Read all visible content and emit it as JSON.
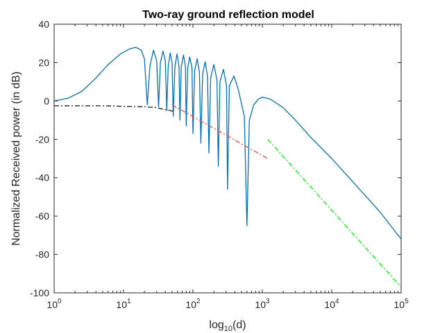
{
  "chart_data": {
    "type": "line",
    "title": "Two-ray ground reflection model",
    "xlabel": {
      "pre": "log",
      "sub": "10",
      "post": "(d)"
    },
    "ylabel": "Normalized Received power (in dB)",
    "x_scale": "log",
    "xlim": [
      1,
      100000
    ],
    "ylim": [
      -100,
      40
    ],
    "grid": false,
    "x_ticks": [
      {
        "value": 1,
        "base": "10",
        "exp": "0"
      },
      {
        "value": 10,
        "base": "10",
        "exp": "1"
      },
      {
        "value": 100,
        "base": "10",
        "exp": "2"
      },
      {
        "value": 1000,
        "base": "10",
        "exp": "3"
      },
      {
        "value": 10000,
        "base": "10",
        "exp": "4"
      },
      {
        "value": 100000,
        "base": "10",
        "exp": "5"
      }
    ],
    "y_ticks": [
      40,
      20,
      0,
      -20,
      -40,
      -60,
      -80,
      -100
    ],
    "colors": {
      "two_ray": "#0072bd",
      "free_space": "#262626",
      "slope_20db": "#ff4d4d",
      "slope_40db": "#00ff00"
    },
    "series": [
      {
        "style": "solid",
        "color": "#0072bd",
        "description_points": [
          [
            1,
            0
          ],
          [
            1.6,
            1.5
          ],
          [
            2.5,
            5
          ],
          [
            4,
            12
          ],
          [
            6,
            19
          ],
          [
            9,
            24.5
          ],
          [
            12,
            27
          ],
          [
            15,
            28
          ],
          [
            18,
            26.5
          ],
          [
            20,
            22
          ],
          [
            22,
            -2
          ],
          [
            24,
            18
          ],
          [
            27,
            26.5
          ],
          [
            30,
            21
          ],
          [
            32,
            -3
          ],
          [
            34,
            20
          ],
          [
            37,
            26
          ],
          [
            40,
            21
          ],
          [
            42,
            -5
          ],
          [
            44,
            18
          ],
          [
            47,
            25
          ],
          [
            50,
            20
          ],
          [
            52,
            -8
          ],
          [
            55,
            18
          ],
          [
            59,
            24.5
          ],
          [
            63,
            18
          ],
          [
            65,
            -10
          ],
          [
            68,
            18
          ],
          [
            73,
            24
          ],
          [
            78,
            18
          ],
          [
            80,
            -13
          ],
          [
            84,
            17
          ],
          [
            90,
            23
          ],
          [
            97,
            17
          ],
          [
            100,
            -17
          ],
          [
            106,
            16
          ],
          [
            115,
            22
          ],
          [
            124,
            15
          ],
          [
            130,
            -22
          ],
          [
            138,
            14
          ],
          [
            150,
            20.5
          ],
          [
            162,
            13
          ],
          [
            170,
            -27
          ],
          [
            180,
            12
          ],
          [
            200,
            19
          ],
          [
            222,
            11
          ],
          [
            232,
            -34
          ],
          [
            245,
            10
          ],
          [
            275,
            16.5
          ],
          [
            305,
            8
          ],
          [
            315,
            -46
          ],
          [
            335,
            8
          ],
          [
            390,
            13
          ],
          [
            450,
            6
          ],
          [
            550,
            -8
          ],
          [
            600,
            -65
          ],
          [
            650,
            -10
          ],
          [
            750,
            -2
          ],
          [
            880,
            1
          ],
          [
            1000,
            2
          ],
          [
            1300,
            1
          ],
          [
            2000,
            -3.5
          ],
          [
            3000,
            -10
          ],
          [
            5000,
            -19
          ],
          [
            10000,
            -30
          ],
          [
            20000,
            -42
          ],
          [
            50000,
            -58
          ],
          [
            100000,
            -72
          ]
        ]
      },
      {
        "style": "dash-dot",
        "color": "#262626",
        "description_points": [
          [
            1,
            -2.5
          ],
          [
            5,
            -2.5
          ],
          [
            10,
            -2.8
          ],
          [
            20,
            -3
          ],
          [
            30,
            -3.5
          ],
          [
            40,
            -4.5
          ],
          [
            55,
            -5.5
          ]
        ]
      },
      {
        "style": "dash-dot",
        "color": "#ff4d4d",
        "description_points": [
          [
            50,
            -2
          ],
          [
            1200,
            -30
          ]
        ]
      },
      {
        "style": "dash-dot",
        "color": "#00ff00",
        "description_points": [
          [
            1200,
            -20
          ],
          [
            100000,
            -97
          ]
        ]
      }
    ]
  }
}
